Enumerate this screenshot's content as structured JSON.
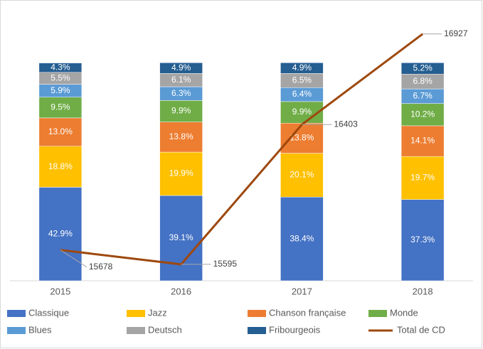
{
  "chart_data": {
    "type": "stacked-bar-line",
    "categories": [
      "2015",
      "2016",
      "2017",
      "2018"
    ],
    "ylim": [
      0,
      119
    ],
    "y2lim": [
      15500,
      17000
    ],
    "series": [
      {
        "name": "Classique",
        "color": "#4472c4",
        "values": [
          42.9,
          39.1,
          38.4,
          37.3
        ],
        "value_labels": [
          "42.9%",
          "39.1%",
          "38.4%",
          "37.3%"
        ]
      },
      {
        "name": "Jazz",
        "color": "#ffc000",
        "values": [
          18.8,
          19.9,
          20.1,
          19.7
        ],
        "value_labels": [
          "18.8%",
          "19.9%",
          "20.1%",
          "19.7%"
        ]
      },
      {
        "name": "Chanson française",
        "color": "#ed7d31",
        "values": [
          13.0,
          13.8,
          13.8,
          14.1
        ],
        "value_labels": [
          "13.0%",
          "13.8%",
          "13.8%",
          "14.1%"
        ]
      },
      {
        "name": "Monde",
        "color": "#70ad47",
        "values": [
          9.5,
          9.9,
          9.9,
          10.2
        ],
        "value_labels": [
          "9.5%",
          "9.9%",
          "9.9%",
          "10.2%"
        ]
      },
      {
        "name": "Blues",
        "color": "#5b9bd5",
        "values": [
          5.9,
          6.3,
          6.4,
          6.7
        ],
        "value_labels": [
          "5.9%",
          "6.3%",
          "6.4%",
          "6.7%"
        ]
      },
      {
        "name": "Deutsch",
        "color": "#a5a5a5",
        "values": [
          5.5,
          6.1,
          6.5,
          6.8
        ],
        "value_labels": [
          "5.5%",
          "6.1%",
          "6.5%",
          "6.8%"
        ]
      },
      {
        "name": "Fribourgeois",
        "color": "#255e91",
        "values": [
          4.3,
          4.9,
          4.9,
          5.2
        ],
        "value_labels": [
          "4.3%",
          "4.9%",
          "4.9%",
          "5.2%"
        ]
      },
      {
        "name": "Total de CD",
        "color": "#9e480e",
        "axis": "y2",
        "values": [
          15678,
          15595,
          16403,
          16927
        ]
      }
    ]
  }
}
